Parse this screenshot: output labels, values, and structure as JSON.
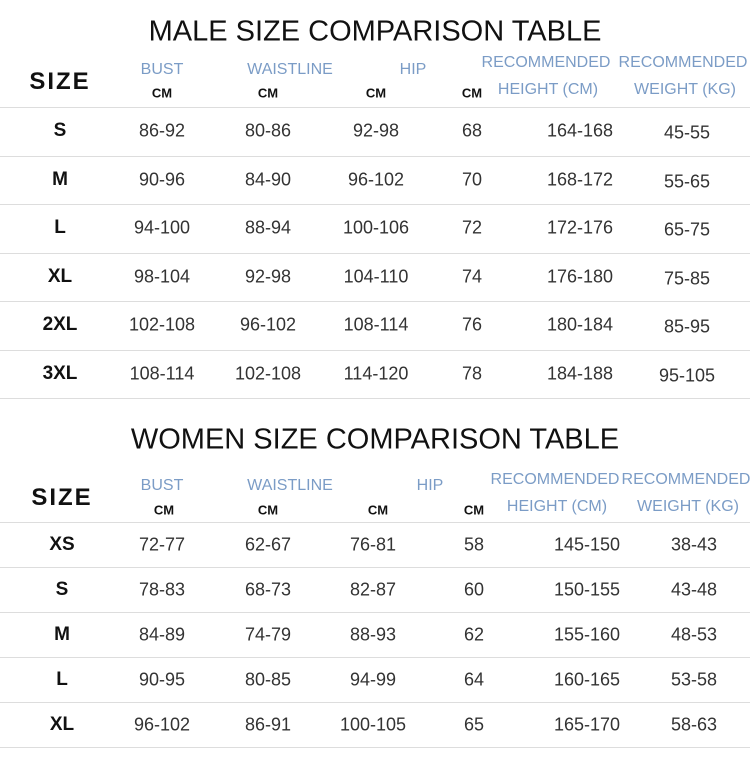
{
  "tables": [
    {
      "title": "MALE SIZE COMPARISON TABLE",
      "headers": [
        {
          "name": "SIZE"
        },
        {
          "label": "BUST",
          "unit": "CM"
        },
        {
          "label": "WAISTLINE",
          "unit": "CM"
        },
        {
          "label": "HIP",
          "unit": "CM"
        },
        {
          "unit": "CM"
        },
        {
          "label": "RECOMMENDED",
          "sub": "HEIGHT (CM)"
        },
        {
          "label": "RECOMMENDED",
          "sub": "WEIGHT (KG)"
        }
      ],
      "rows": [
        [
          "S",
          "86-92",
          "80-86",
          "92-98",
          "68",
          "164-168",
          "45-55"
        ],
        [
          "M",
          "90-96",
          "84-90",
          "96-102",
          "70",
          "168-172",
          "55-65"
        ],
        [
          "L",
          "94-100",
          "88-94",
          "100-106",
          "72",
          "172-176",
          "65-75"
        ],
        [
          "XL",
          "98-104",
          "92-98",
          "104-110",
          "74",
          "176-180",
          "75-85"
        ],
        [
          "2XL",
          "102-108",
          "96-102",
          "108-114",
          "76",
          "180-184",
          "85-95"
        ],
        [
          "3XL",
          "108-114",
          "102-108",
          "114-120",
          "78",
          "184-188",
          "95-105"
        ]
      ]
    },
    {
      "title": "WOMEN SIZE COMPARISON TABLE",
      "headers": [
        {
          "name": "SIZE"
        },
        {
          "label": "BUST",
          "unit": "CM"
        },
        {
          "label": "WAISTLINE",
          "unit": "CM"
        },
        {
          "label": "HIP",
          "unit": "CM"
        },
        {
          "unit": "CM"
        },
        {
          "label": "RECOMMENDED",
          "sub": "HEIGHT (CM)"
        },
        {
          "label": "RECOMMENDED",
          "sub": "WEIGHT (KG)"
        }
      ],
      "rows": [
        [
          "XS",
          "72-77",
          "62-67",
          "76-81",
          "58",
          "145-150",
          "38-43"
        ],
        [
          "S",
          "78-83",
          "68-73",
          "82-87",
          "60",
          "150-155",
          "43-48"
        ],
        [
          "M",
          "84-89",
          "74-79",
          "88-93",
          "62",
          "155-160",
          "48-53"
        ],
        [
          "L",
          "90-95",
          "80-85",
          "94-99",
          "64",
          "160-165",
          "53-58"
        ],
        [
          "XL",
          "96-102",
          "86-91",
          "100-105",
          "65",
          "165-170",
          "58-63"
        ]
      ]
    }
  ]
}
